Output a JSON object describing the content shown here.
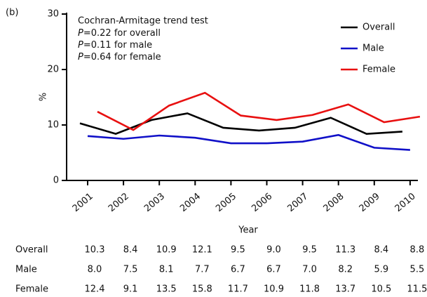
{
  "chart_data": {
    "type": "line",
    "panel_label": "(b)",
    "y_label": "%",
    "x_label": "Year",
    "annotation": {
      "title": "Cochran-Armitage trend test",
      "stats": [
        {
          "symbol": "P",
          "text": "=0.22 for overall"
        },
        {
          "symbol": "P",
          "text": "=0.11 for male"
        },
        {
          "symbol": "P",
          "text": "=0.64 for female"
        }
      ]
    },
    "categories": [
      "2001",
      "2002",
      "2003",
      "2004",
      "2005",
      "2006",
      "2007",
      "2008",
      "2009",
      "2010"
    ],
    "ylim": [
      0,
      30
    ],
    "yticks": [
      0,
      10,
      20,
      30
    ],
    "grid": false,
    "legend": "upper right",
    "series": [
      {
        "name": "Overall",
        "color": "#000000",
        "values": [
          10.3,
          8.4,
          10.9,
          12.1,
          9.5,
          9.0,
          9.5,
          11.3,
          8.4,
          8.8
        ],
        "value_labels": [
          "10.3",
          "8.4",
          "10.9",
          "12.1",
          "9.5",
          "9.0",
          "9.5",
          "11.3",
          "8.4",
          "8.8"
        ]
      },
      {
        "name": "Male",
        "color": "#1010c8",
        "values": [
          8.0,
          7.5,
          8.1,
          7.7,
          6.7,
          6.7,
          7.0,
          8.2,
          5.9,
          5.5
        ],
        "value_labels": [
          "8.0",
          "7.5",
          "8.1",
          "7.7",
          "6.7",
          "6.7",
          "7.0",
          "8.2",
          "5.9",
          "5.5"
        ]
      },
      {
        "name": "Female",
        "color": "#e81010",
        "values": [
          12.4,
          9.1,
          13.5,
          15.8,
          11.7,
          10.9,
          11.8,
          13.7,
          10.5,
          11.5
        ],
        "value_labels": [
          "12.4",
          "9.1",
          "13.5",
          "15.8",
          "11.7",
          "10.9",
          "11.8",
          "13.7",
          "10.5",
          "11.5"
        ]
      }
    ]
  }
}
